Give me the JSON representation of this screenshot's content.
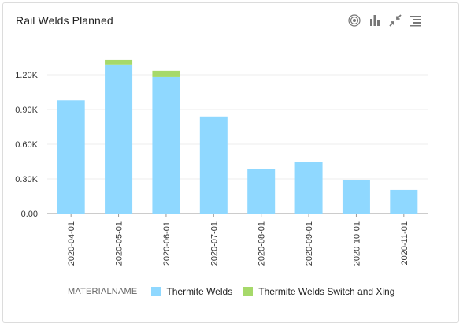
{
  "header": {
    "title": "Rail Welds Planned"
  },
  "toolbar": {
    "icons": [
      "target-icon",
      "bar-chart-icon",
      "collapse-icon",
      "menu-list-icon"
    ],
    "icon_color": "#777777"
  },
  "colors": {
    "series1": "#8fd8ff",
    "series2": "#a6d96a",
    "grid": "#eeeeee",
    "axis": "#999999"
  },
  "chart_data": {
    "type": "bar",
    "stacked": true,
    "categories": [
      "2020-04-01",
      "2020-05-01",
      "2020-06-01",
      "2020-07-01",
      "2020-08-01",
      "2020-09-01",
      "2020-10-01",
      "2020-11-01"
    ],
    "series": [
      {
        "name": "Thermite Welds",
        "values": [
          980,
          1290,
          1180,
          840,
          385,
          450,
          290,
          205
        ]
      },
      {
        "name": "Thermite Welds Switch and Xing",
        "values": [
          0,
          40,
          55,
          0,
          0,
          0,
          0,
          0
        ]
      }
    ],
    "yticks": [
      {
        "value": 0,
        "label": "0.00"
      },
      {
        "value": 300,
        "label": "0.30K"
      },
      {
        "value": 600,
        "label": "0.60K"
      },
      {
        "value": 900,
        "label": "0.90K"
      },
      {
        "value": 1200,
        "label": "1.20K"
      }
    ],
    "ylim": [
      0,
      1200
    ],
    "grid": true,
    "legend_position": "bottom",
    "legend_title": "MATERIALNAME"
  }
}
